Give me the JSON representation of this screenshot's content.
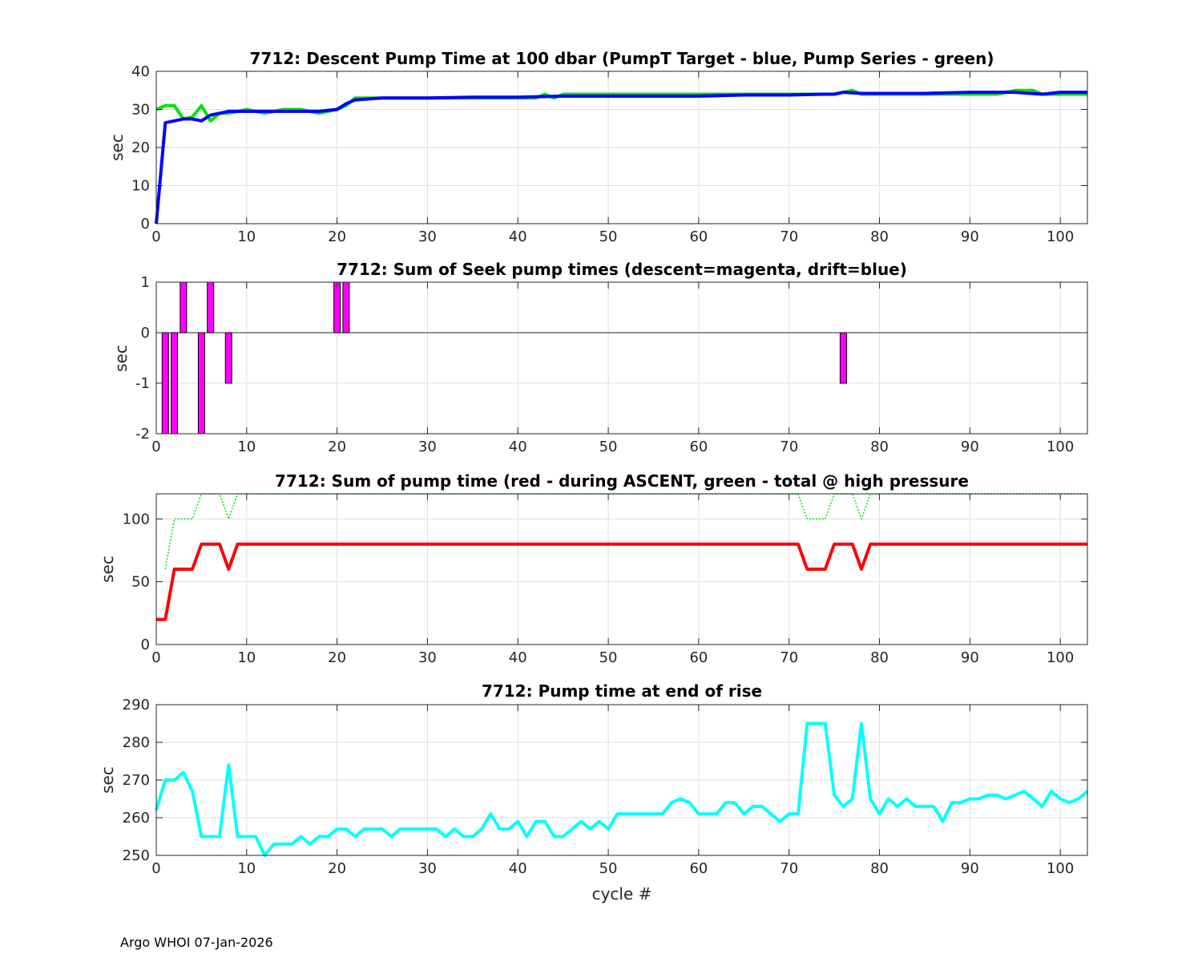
{
  "footer": "Argo WHOI 07-Jan-2026",
  "colors": {
    "green": "#00e600",
    "blue": "#0000ff",
    "magenta": "#ff00ff",
    "red": "#ff0000",
    "cyan": "#00ffff",
    "axis": "#262626",
    "grid": "#dfdfdf"
  },
  "chart_data": [
    {
      "type": "line",
      "title": "7712: Descent Pump Time at 100 dbar (PumpT Target - blue, Pump Series - green)",
      "xlabel": "",
      "ylabel": "sec",
      "xlim": [
        0,
        103
      ],
      "ylim": [
        0,
        40
      ],
      "xticks": [
        "0",
        "10",
        "20",
        "30",
        "40",
        "50",
        "60",
        "70",
        "80",
        "90",
        "100"
      ],
      "yticks": [
        "0",
        "10",
        "20",
        "30",
        "40"
      ],
      "grid": true,
      "series": [
        {
          "color": "green",
          "x": [
            0,
            1,
            2,
            3,
            4,
            5,
            6,
            7,
            8,
            10,
            12,
            14,
            16,
            18,
            20,
            21,
            22,
            25,
            30,
            35,
            40,
            42,
            43,
            44,
            45,
            50,
            55,
            60,
            65,
            70,
            75,
            76,
            77,
            78,
            80,
            85,
            90,
            93,
            95,
            97,
            98,
            100,
            103
          ],
          "y": [
            30,
            31,
            31,
            27.5,
            28,
            31,
            27,
            29,
            29,
            30,
            29,
            30,
            30,
            29,
            30,
            31,
            33,
            33,
            33,
            33,
            33,
            33,
            34,
            33,
            34,
            34,
            34,
            34,
            34,
            34,
            34,
            34.5,
            35,
            34,
            34,
            34,
            34,
            34,
            35,
            35,
            34,
            34,
            34
          ]
        },
        {
          "color": "blue",
          "x": [
            0,
            1,
            2,
            3,
            4,
            5,
            6,
            7,
            8,
            10,
            12,
            14,
            16,
            18,
            20,
            21,
            22,
            25,
            30,
            35,
            40,
            45,
            50,
            55,
            60,
            65,
            70,
            74,
            75,
            76,
            78,
            80,
            85,
            90,
            95,
            98,
            100,
            103
          ],
          "y": [
            0,
            26.5,
            27,
            27.5,
            27.5,
            27,
            28.5,
            29,
            29.5,
            29.5,
            29.5,
            29.5,
            29.5,
            29.5,
            30,
            31.5,
            32.5,
            33,
            33,
            33.2,
            33.2,
            33.5,
            33.5,
            33.5,
            33.5,
            33.8,
            33.8,
            34,
            34,
            34.5,
            34.2,
            34.2,
            34.2,
            34.5,
            34.5,
            34,
            34.5,
            34.5
          ]
        }
      ]
    },
    {
      "type": "bar",
      "title": "7712: Sum of Seek pump times (descent=magenta, drift=blue)",
      "xlabel": "",
      "ylabel": "sec",
      "xlim": [
        0,
        103
      ],
      "ylim": [
        -2,
        1
      ],
      "xticks": [
        "0",
        "10",
        "20",
        "30",
        "40",
        "50",
        "60",
        "70",
        "80",
        "90",
        "100"
      ],
      "yticks": [
        "-2",
        "-1",
        "0",
        "1"
      ],
      "grid": true,
      "series": [
        {
          "color": "magenta",
          "x": [
            1,
            2,
            3,
            5,
            6,
            8,
            20,
            21,
            76
          ],
          "values": [
            -2,
            -2,
            1,
            -2,
            1,
            -1,
            1,
            1,
            -1
          ]
        }
      ]
    },
    {
      "type": "line",
      "title": "7712: Sum of pump time (red - during ASCENT, green - total @ high pressure",
      "xlabel": "",
      "ylabel": "sec",
      "xlim": [
        0,
        103
      ],
      "ylim": [
        0,
        120
      ],
      "xticks": [
        "0",
        "10",
        "20",
        "30",
        "40",
        "50",
        "60",
        "70",
        "80",
        "90",
        "100"
      ],
      "yticks": [
        "0",
        "50",
        "100"
      ],
      "grid": true,
      "series": [
        {
          "color": "green",
          "style": "dotted",
          "x": [
            1,
            2,
            3,
            4,
            5,
            6,
            7,
            8,
            9,
            10,
            71,
            72,
            73,
            74,
            75,
            76,
            77,
            78,
            79,
            80,
            103
          ],
          "y": [
            60,
            100,
            100,
            100,
            120,
            120,
            120,
            100,
            120,
            120,
            120,
            100,
            100,
            100,
            120,
            120,
            120,
            100,
            120,
            120,
            120
          ]
        },
        {
          "color": "red",
          "x": [
            0,
            1,
            2,
            3,
            4,
            5,
            6,
            7,
            8,
            9,
            10,
            71,
            72,
            73,
            74,
            75,
            76,
            77,
            78,
            79,
            80,
            103
          ],
          "y": [
            20,
            20,
            60,
            60,
            60,
            80,
            80,
            80,
            60,
            80,
            80,
            80,
            60,
            60,
            60,
            80,
            80,
            80,
            60,
            80,
            80,
            80
          ]
        }
      ]
    },
    {
      "type": "line",
      "title": "7712: Pump time at end of rise",
      "xlabel": "cycle #",
      "ylabel": "sec",
      "xlim": [
        0,
        103
      ],
      "ylim": [
        250,
        290
      ],
      "xticks": [
        "0",
        "10",
        "20",
        "30",
        "40",
        "50",
        "60",
        "70",
        "80",
        "90",
        "100"
      ],
      "yticks": [
        "250",
        "260",
        "270",
        "280",
        "290"
      ],
      "grid": true,
      "series": [
        {
          "color": "cyan",
          "x": [
            0,
            1,
            2,
            3,
            4,
            5,
            6,
            7,
            8,
            9,
            10,
            11,
            12,
            13,
            14,
            15,
            16,
            17,
            18,
            19,
            20,
            21,
            22,
            23,
            24,
            25,
            26,
            27,
            28,
            29,
            30,
            31,
            32,
            33,
            34,
            35,
            36,
            37,
            38,
            39,
            40,
            41,
            42,
            43,
            44,
            45,
            46,
            47,
            48,
            49,
            50,
            51,
            52,
            53,
            54,
            55,
            56,
            57,
            58,
            59,
            60,
            61,
            62,
            63,
            64,
            65,
            66,
            67,
            68,
            69,
            70,
            71,
            72,
            73,
            74,
            75,
            76,
            77,
            78,
            79,
            80,
            81,
            82,
            83,
            84,
            85,
            86,
            87,
            88,
            89,
            90,
            91,
            92,
            93,
            94,
            95,
            96,
            97,
            98,
            99,
            100,
            101,
            102,
            103
          ],
          "y": [
            262,
            270,
            270,
            272,
            267,
            255,
            255,
            255,
            274,
            255,
            255,
            255,
            250,
            253,
            253,
            253,
            255,
            253,
            255,
            255,
            257,
            257,
            255,
            257,
            257,
            257,
            255,
            257,
            257,
            257,
            257,
            257,
            255,
            257,
            255,
            255,
            257,
            261,
            257,
            257,
            259,
            255,
            259,
            259,
            255,
            255,
            257,
            259,
            257,
            259,
            257,
            261,
            261,
            261,
            261,
            261,
            261,
            264,
            265,
            264,
            261,
            261,
            261,
            264,
            264,
            261,
            263,
            263,
            261,
            259,
            261,
            261,
            285,
            285,
            285,
            266,
            263,
            265,
            285,
            265,
            261,
            265,
            263,
            265,
            263,
            263,
            263,
            259,
            264,
            264,
            265,
            265,
            266,
            266,
            265,
            266,
            267,
            265,
            263,
            267,
            265,
            264,
            265,
            267
          ]
        }
      ]
    }
  ]
}
